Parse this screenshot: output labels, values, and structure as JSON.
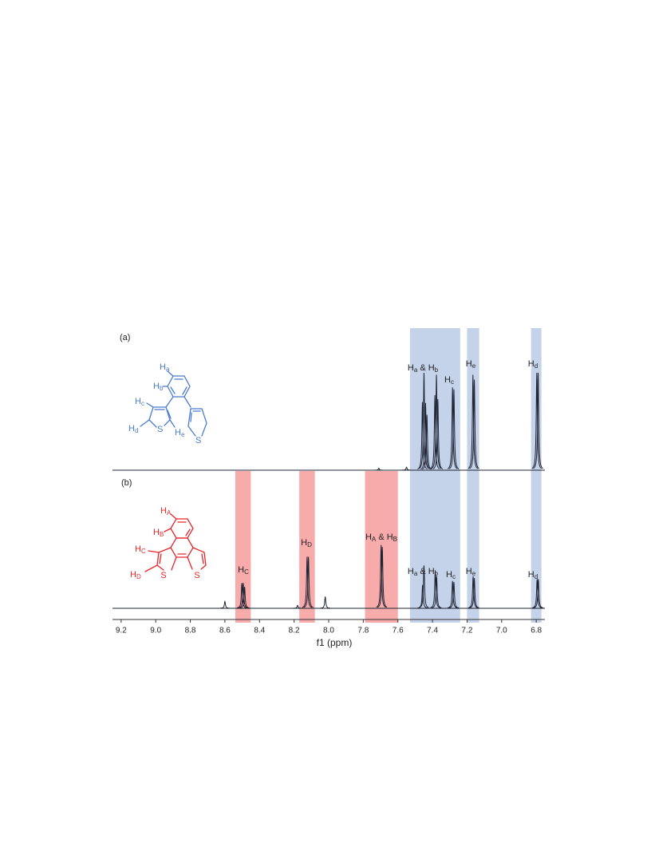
{
  "chart_data": {
    "type": "spectrum",
    "xlabel": "f1 (ppm)",
    "xlim": [
      9.25,
      6.75
    ],
    "xticks": [
      9.2,
      {
        "value": 9,
        "label": "9.0"
      },
      8.8,
      8.6,
      8.4,
      8.2,
      {
        "value": 8,
        "label": "8.0"
      },
      7.8,
      7.6,
      7.4,
      7.2,
      {
        "value": 7,
        "label": "7.0"
      },
      6.8
    ],
    "regions": [
      {
        "color": "#c4d2ea",
        "spans": [
          [
            7.53,
            7.24
          ],
          [
            7.2,
            7.13
          ],
          [
            6.83,
            6.77
          ]
        ]
      },
      {
        "color": "#f8abab",
        "spans": [
          [
            8.54,
            8.45
          ],
          [
            8.17,
            8.08
          ],
          [
            7.79,
            7.6
          ]
        ]
      }
    ],
    "series": [
      {
        "name": "(a)",
        "color": "#1f2433",
        "structure_color": "#4a7bd0",
        "x": [
          7.71,
          7.55,
          7.458,
          7.449,
          7.44,
          7.432,
          7.386,
          7.377,
          7.369,
          7.284,
          7.276,
          7.166,
          7.158,
          6.797,
          6.789
        ],
        "values": [
          2,
          3,
          70,
          100,
          69,
          57,
          77,
          98,
          73,
          85,
          83,
          98,
          93,
          100,
          100
        ],
        "peak_labels": [
          [
            "H",
            "a",
            " & ",
            "H",
            "b"
          ],
          [
            "H",
            "c"
          ],
          [
            "H",
            "e"
          ],
          [
            "H",
            "d"
          ]
        ],
        "structure_labels": [
          [
            "H",
            "a"
          ],
          [
            "H",
            "b"
          ],
          [
            "H",
            "c"
          ],
          [
            "H",
            "d"
          ],
          [
            "H",
            "e"
          ],
          [
            "S"
          ],
          [
            "S"
          ]
        ]
      },
      {
        "name": "(b)",
        "color": "#1f2433",
        "structure_color": "#e8262a",
        "x": [
          8.6,
          8.502,
          8.494,
          8.486,
          8.18,
          8.125,
          8.117,
          8.02,
          7.697,
          7.69,
          7.457,
          7.449,
          7.384,
          7.376,
          7.284,
          7.276,
          7.165,
          7.158,
          6.795,
          6.788
        ],
        "values": [
          7,
          26,
          26,
          22,
          3,
          53,
          53,
          12,
          65,
          63,
          24,
          44,
          39,
          33,
          28,
          27,
          33,
          31,
          30,
          30
        ],
        "peak_labels": [
          [
            "H",
            "C"
          ],
          [
            "H",
            "D"
          ],
          [
            "H",
            "A",
            " & ",
            "H",
            "B"
          ],
          [
            "H",
            "a",
            " & ",
            "H",
            "b"
          ],
          [
            "H",
            "c"
          ],
          [
            "H",
            "e"
          ],
          [
            "H",
            "d"
          ]
        ],
        "structure_labels": [
          [
            "H",
            "A"
          ],
          [
            "H",
            "B"
          ],
          [
            "H",
            "C"
          ],
          [
            "H",
            "D"
          ],
          [
            "S"
          ],
          [
            "S"
          ]
        ]
      }
    ]
  }
}
